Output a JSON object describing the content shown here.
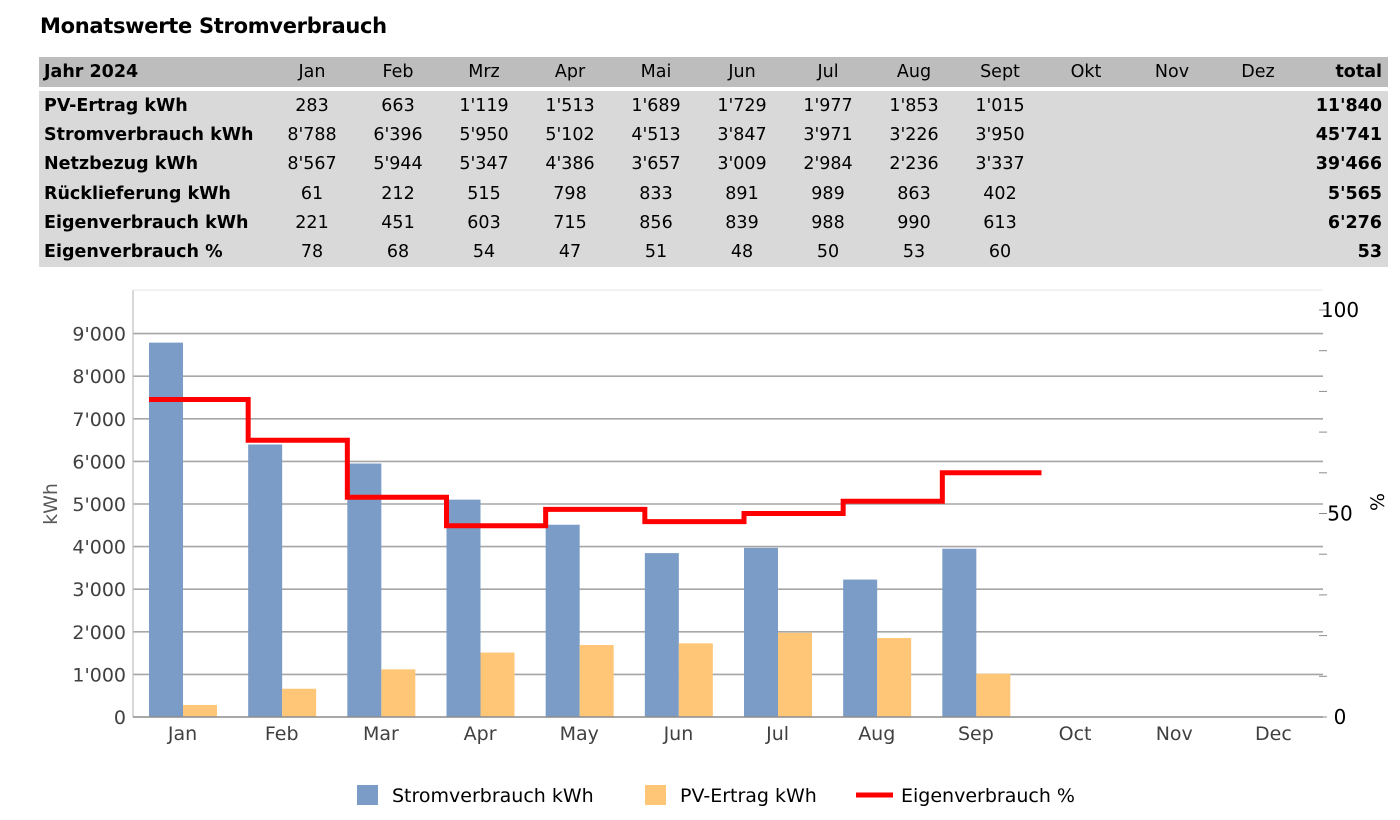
{
  "title": "Monatswerte Stromverbrauch",
  "table": {
    "header": {
      "label": "Jahr 2024",
      "months": [
        "Jan",
        "Feb",
        "Mrz",
        "Apr",
        "Mai",
        "Jun",
        "Jul",
        "Aug",
        "Sept",
        "Okt",
        "Nov",
        "Dez"
      ],
      "total": "total"
    },
    "rows": [
      {
        "label": "PV-Ertrag kWh",
        "values": [
          "283",
          "663",
          "1'119",
          "1'513",
          "1'689",
          "1'729",
          "1'977",
          "1'853",
          "1'015",
          "",
          "",
          ""
        ],
        "total": "11'840"
      },
      {
        "label": "Stromverbrauch kWh",
        "values": [
          "8'788",
          "6'396",
          "5'950",
          "5'102",
          "4'513",
          "3'847",
          "3'971",
          "3'226",
          "3'950",
          "",
          "",
          ""
        ],
        "total": "45'741"
      },
      {
        "label": "Netzbezug kWh",
        "values": [
          "8'567",
          "5'944",
          "5'347",
          "4'386",
          "3'657",
          "3'009",
          "2'984",
          "2'236",
          "3'337",
          "",
          "",
          ""
        ],
        "total": "39'466"
      },
      {
        "label": "Rücklieferung kWh",
        "values": [
          "61",
          "212",
          "515",
          "798",
          "833",
          "891",
          "989",
          "863",
          "402",
          "",
          "",
          ""
        ],
        "total": "5'565"
      },
      {
        "label": "Eigenverbrauch kWh",
        "values": [
          "221",
          "451",
          "603",
          "715",
          "856",
          "839",
          "988",
          "990",
          "613",
          "",
          "",
          ""
        ],
        "total": "6'276"
      },
      {
        "label": "Eigenverbrauch %",
        "values": [
          "78",
          "68",
          "54",
          "47",
          "51",
          "48",
          "50",
          "53",
          "60",
          "",
          "",
          ""
        ],
        "total": "53"
      }
    ]
  },
  "chart_data": {
    "type": "bar",
    "categories": [
      "Jan",
      "Feb",
      "Mar",
      "Apr",
      "May",
      "Jun",
      "Jul",
      "Aug",
      "Sep",
      "Oct",
      "Nov",
      "Dec"
    ],
    "ylabel": "kWh",
    "y2label": "%",
    "ylim": [
      0,
      10000
    ],
    "y2lim": [
      0,
      100
    ],
    "yticks": [
      "0",
      "1'000",
      "2'000",
      "3'000",
      "4'000",
      "5'000",
      "6'000",
      "7'000",
      "8'000",
      "9'000"
    ],
    "y2ticks": [
      "0",
      "50",
      "100"
    ],
    "grid": true,
    "legend_position": "bottom",
    "series": [
      {
        "name": "Stromverbrauch kWh",
        "kind": "bar",
        "axis": "left",
        "color": "#7a9cc6",
        "values": [
          8788,
          6396,
          5950,
          5102,
          4513,
          3847,
          3971,
          3226,
          3950,
          null,
          null,
          null
        ]
      },
      {
        "name": "PV-Ertrag kWh",
        "kind": "bar",
        "axis": "left",
        "color": "#ffc677",
        "values": [
          283,
          663,
          1119,
          1513,
          1689,
          1729,
          1977,
          1853,
          1015,
          null,
          null,
          null
        ]
      },
      {
        "name": "Eigenverbrauch %",
        "kind": "step-line",
        "axis": "right",
        "color": "#ff0000",
        "values": [
          78,
          68,
          54,
          47,
          51,
          48,
          50,
          53,
          60,
          null,
          null,
          null
        ]
      }
    ]
  }
}
